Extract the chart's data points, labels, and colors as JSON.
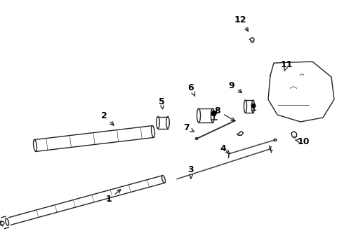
{
  "background_color": "#ffffff",
  "line_color": "#222222",
  "label_color": "#000000",
  "fig_width": 4.9,
  "fig_height": 3.6,
  "dpi": 100,
  "label_data": [
    [
      1,
      1.4,
      2.82,
      1.55,
      2.95
    ],
    [
      2,
      1.55,
      1.58,
      1.68,
      1.68
    ],
    [
      3,
      2.72,
      2.42,
      2.72,
      2.55
    ],
    [
      4,
      3.18,
      2.18,
      3.22,
      2.3
    ],
    [
      5,
      2.3,
      1.48,
      2.38,
      1.6
    ],
    [
      6,
      2.72,
      1.18,
      2.78,
      1.32
    ],
    [
      7,
      2.62,
      1.68,
      2.68,
      1.78
    ],
    [
      8,
      3.1,
      1.55,
      3.12,
      1.68
    ],
    [
      9,
      3.3,
      1.08,
      3.32,
      1.22
    ],
    [
      10,
      4.28,
      1.88,
      4.22,
      1.98
    ],
    [
      11,
      4.08,
      0.88,
      4.0,
      1.02
    ],
    [
      12,
      3.42,
      0.32,
      3.42,
      0.48
    ]
  ]
}
